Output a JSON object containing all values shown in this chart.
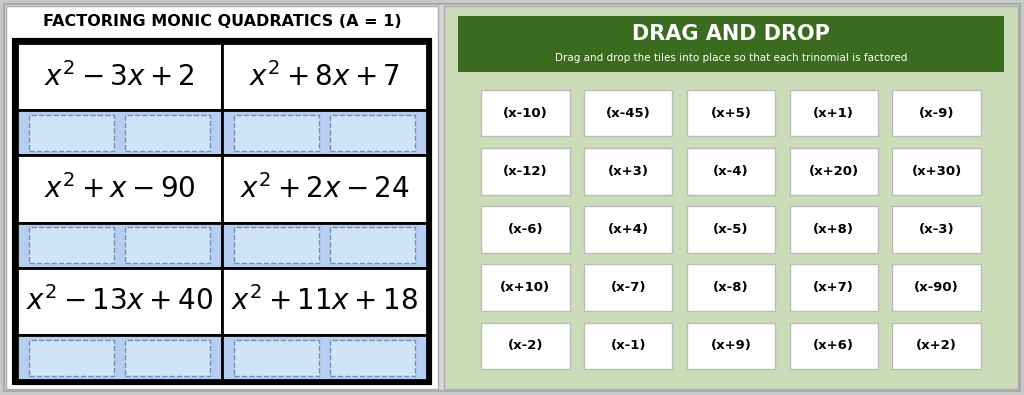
{
  "left_title": "FACTORING MONIC QUADRATICS (A = 1)",
  "cell_bg_blue": "#b8cef0",
  "quadratics": [
    {
      "expr": "$x^2 - 3x + 2$",
      "row": 0,
      "col": 0
    },
    {
      "expr": "$x^2 + 8x + 7$",
      "row": 0,
      "col": 1
    },
    {
      "expr": "$x^2 + x - 90$",
      "row": 1,
      "col": 0
    },
    {
      "expr": "$x^2 + 2x - 24$",
      "row": 1,
      "col": 1
    },
    {
      "expr": "$x^2 - 13x + 40$",
      "row": 2,
      "col": 0
    },
    {
      "expr": "$x^2 + 11x + 18$",
      "row": 2,
      "col": 1
    }
  ],
  "right_header_bg": "#3a6b1e",
  "right_panel_bg": "#cddcb8",
  "outer_bg": "#c8c8c8",
  "drag_title": "DRAG AND DROP",
  "drag_subtitle": "Drag and drop the tiles into place so that each trinomial is factored",
  "tiles": [
    [
      "(x-10)",
      "(x-45)",
      "(x+5)",
      "(x+1)",
      "(x-9)"
    ],
    [
      "(x-12)",
      "(x+3)",
      "(x-4)",
      "(x+20)",
      "(x+30)"
    ],
    [
      "(x-6)",
      "(x+4)",
      "(x-5)",
      "(x+8)",
      "(x-3)"
    ],
    [
      "(x+10)",
      "(x-7)",
      "(x-8)",
      "(x+7)",
      "(x-90)"
    ],
    [
      "(x-2)",
      "(x-1)",
      "(x+9)",
      "(x+6)",
      "(x+2)"
    ]
  ]
}
